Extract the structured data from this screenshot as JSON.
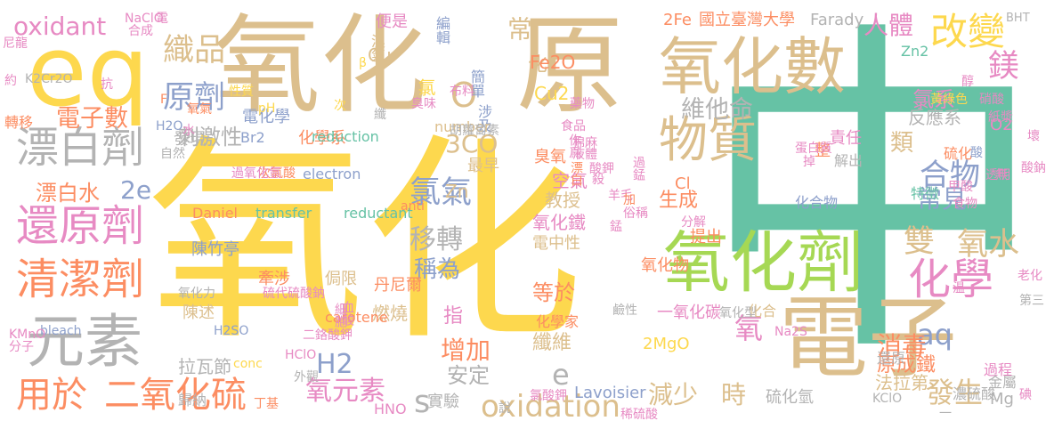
{
  "palette": {
    "yellow": "#fdd84e",
    "tan": "#dcbf8d",
    "teal": "#66c2a5",
    "salmon": "#fc8d62",
    "blue": "#8da0cb",
    "pink": "#e78ac3",
    "green": "#a6d854",
    "gray": "#b3b3b3"
  },
  "words": [
    "氧化",
    "中",
    "氧化",
    "原",
    "eq",
    "電子",
    "氧化數",
    "氧化劑",
    "元素",
    "還原劑",
    "清潔劑",
    "漂白劑",
    "化學",
    "物質",
    "織品",
    "改變",
    "用於",
    "二氧化硫",
    "氧元素",
    "oxidation",
    "原劑",
    "雙",
    "氧水",
    "電子數",
    "氯氣",
    "移轉",
    "合物",
    "常見",
    "鎂",
    "人體",
    "刺激性",
    "維他命",
    "3CO",
    "2e",
    "aq",
    "H2",
    "e",
    "s",
    "減少",
    "發生",
    "增加",
    "消毒",
    "時",
    "原成鐵",
    "氯系",
    "O",
    "稱為",
    "等於",
    "氧化鐵",
    "漂白水",
    "氧",
    "指",
    "纖維",
    "安定",
    "燃燒",
    "教授",
    "生成",
    "空氣",
    "化合物",
    "類",
    "反應系",
    "oxidant",
    "NaClO",
    "合成",
    "電",
    "2Fe",
    "國立臺灣大學",
    "Farady",
    "常",
    "化",
    "Fe2O",
    "Cu2",
    "Cu",
    "便是",
    "溴氣",
    "編輯",
    "簡單",
    "涉及",
    "氯",
    "電化學",
    "化學系",
    "reduction",
    "number",
    "Br2",
    "發現",
    "發現",
    "電中性",
    "Zn",
    "臭氧",
    "最早",
    "electron",
    "transfer",
    "reductant",
    "Daniel",
    "Lavoisier",
    "實驗",
    "硫化氫",
    "陳竹亭",
    "牽涉",
    "侷限",
    "拉瓦節",
    "陳述",
    "歸納",
    "丹尼爾",
    "一氧化碳",
    "化合",
    "2MgO",
    "法拉第",
    "過程",
    "濃硫酸",
    "金屬",
    "Mg",
    "還原",
    "解出",
    "責任",
    "整",
    "硫化",
    "特徵",
    "提出",
    "Cl",
    "化學家",
    "氧化物",
    "carotene",
    "bleach",
    "KMnO",
    "H2SO",
    "HClO",
    "conc",
    "HNO",
    "KClO",
    "Na2S",
    "Zn2",
    "O2",
    "BHT",
    "K2Cr2O",
    "尼龍",
    "約",
    "轉移",
    "H2O",
    "性質",
    "纖",
    "胡蘿蔔素",
    "食品",
    "藥物",
    "作爲",
    "漂白",
    "棉麻",
    "過錳",
    "酸鉀",
    "羊毛",
    "水",
    "抗",
    "氧氣",
    "俗稱",
    "分解",
    "醇",
    "壞",
    "甲酸",
    "透明",
    "食物",
    "蛋白質",
    "黃綠色",
    "硝酸",
    "紙漿",
    "酸鈉",
    "第三",
    "老化",
    "分子",
    "外觀",
    "丁基",
    "稀硫酸",
    "二鉻酸鉀",
    "硫代硫酸鈉",
    "細胞",
    "血酸",
    "鹼性",
    "氧化型",
    "氧化力",
    "次氯酸",
    "過氧化氫",
    "自然",
    "布料",
    "臭味",
    "液體",
    "殺",
    "加",
    "掉",
    "無",
    "碘",
    "說",
    "氯酸鉀",
    "錳",
    "温",
    "酸",
    "pH",
    "anti",
    "β",
    "一",
    "次",
    "F"
  ]
}
